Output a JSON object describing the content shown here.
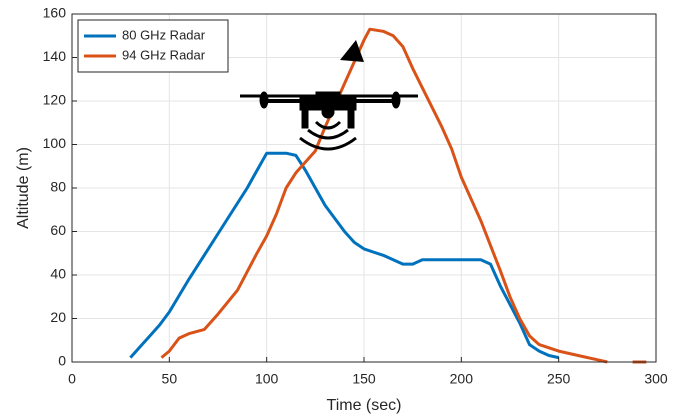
{
  "chart_data": {
    "type": "line",
    "xlabel": "Time (sec)",
    "ylabel": "Altitude (m)",
    "xlim": [
      0,
      300
    ],
    "xticks": [
      0,
      50,
      100,
      150,
      200,
      250,
      300
    ],
    "ylim": [
      0,
      160
    ],
    "yticks": [
      0,
      20,
      40,
      60,
      80,
      100,
      120,
      140,
      160
    ],
    "grid": true,
    "legend": "top-left",
    "series": [
      {
        "name": "80 GHz Radar",
        "color": "#0072bd",
        "x": [
          30,
          35,
          40,
          45,
          50,
          60,
          70,
          80,
          90,
          95,
          100,
          110,
          115,
          120,
          130,
          140,
          145,
          150,
          160,
          170,
          175,
          180,
          190,
          200,
          210,
          215,
          220,
          230,
          235,
          240,
          245,
          250
        ],
        "values": [
          2,
          7,
          12,
          17,
          23,
          38,
          52,
          66,
          80,
          88,
          96,
          96,
          95,
          88,
          72,
          60,
          55,
          52,
          49,
          45,
          45,
          47,
          47,
          47,
          47,
          45,
          35,
          18,
          8,
          5,
          3,
          2
        ]
      },
      {
        "name": "94 GHz Radar",
        "color": "#d95319",
        "x": [
          46,
          50,
          55,
          60,
          68,
          75,
          85,
          95,
          100,
          105,
          110,
          115,
          120,
          125,
          130,
          140,
          150,
          153,
          160,
          165,
          170,
          175,
          180,
          190,
          195,
          200,
          210,
          220,
          225,
          230,
          235,
          240,
          250,
          260,
          270,
          275,
          282,
          288,
          295
        ],
        "values": [
          2,
          5,
          11,
          13,
          15,
          22,
          33,
          50,
          58,
          68,
          80,
          87,
          92,
          97,
          108,
          128,
          148,
          153,
          152,
          150,
          145,
          135,
          126,
          108,
          98,
          85,
          65,
          42,
          30,
          20,
          12,
          8,
          5,
          3,
          1,
          0,
          null,
          0,
          0
        ]
      }
    ]
  }
}
